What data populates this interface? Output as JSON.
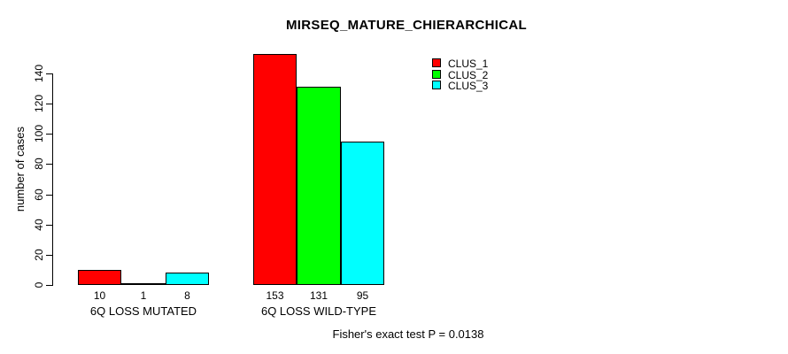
{
  "chart_data": {
    "type": "bar",
    "title": "MIRSEQ_MATURE_CHIERARCHICAL",
    "ylabel": "number of cases",
    "ylim": [
      0,
      140
    ],
    "yticks": [
      0,
      20,
      40,
      60,
      80,
      100,
      120,
      140
    ],
    "grid": false,
    "legend_position": "top-right",
    "categories": [
      "6Q LOSS MUTATED",
      "6Q LOSS WILD-TYPE"
    ],
    "series": [
      {
        "name": "CLUS_1",
        "color": "#ff0000",
        "values": [
          10,
          153
        ]
      },
      {
        "name": "CLUS_2",
        "color": "#00ff00",
        "values": [
          1,
          131
        ]
      },
      {
        "name": "CLUS_3",
        "color": "#00ffff",
        "values": [
          8,
          95
        ]
      }
    ],
    "bar_value_labels": [
      [
        "10",
        "1",
        "8"
      ],
      [
        "153",
        "131",
        "95"
      ]
    ],
    "annotation": "Fisher's exact test P = 0.0138",
    "colors": {
      "background": "#ffffff",
      "axis": "#000000",
      "bar_outline": "#000000",
      "text": "#000000"
    }
  }
}
